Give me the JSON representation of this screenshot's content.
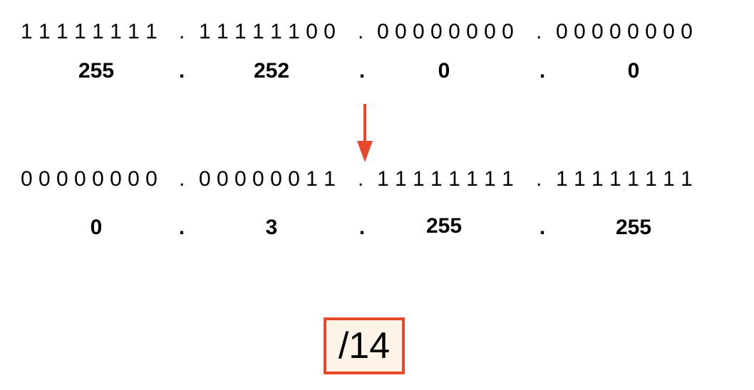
{
  "mask": {
    "binary": [
      "1 1 1 1 1 1 1 1",
      "1 1 1 1 1 1 0 0",
      "0 0 0 0 0 0 0 0",
      "0 0 0 0 0 0 0 0"
    ],
    "decimal": [
      "255",
      "252",
      "0",
      "0"
    ]
  },
  "wildcard": {
    "binary": [
      "0 0 0 0 0 0 0 0",
      "0 0 0 0 0 0 1 1",
      "1 1 1 1 1 1 1 1",
      "1 1 1 1 1 1 1 1"
    ],
    "decimal": [
      "0",
      "3",
      "255",
      "255"
    ]
  },
  "separator": ".",
  "prefix": "/14",
  "colors": {
    "arrow": "#e8492a",
    "box_border": "#e8492a",
    "box_fill": "#fdf3e6"
  },
  "icons": {
    "arrow": "down-arrow-icon"
  }
}
